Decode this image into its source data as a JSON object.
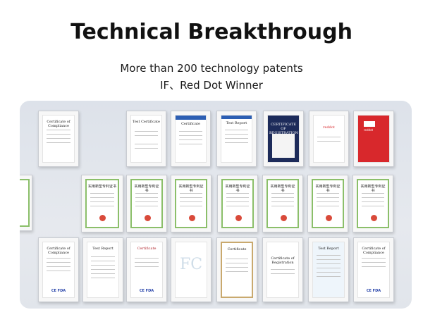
{
  "header": {
    "title": "Technical Breakthrough",
    "subtitle_line1": "More than 200 technology patents",
    "subtitle_line2": "IF、Red Dot Winner"
  },
  "certificates": {
    "row1": [
      {
        "title": "Certificate of Compliance"
      },
      {
        "title": "Test Certificate"
      },
      {
        "title": "Certificate"
      },
      {
        "title": "Test Report"
      },
      {
        "title": "CERTIFICATE OF REGISTRATION"
      },
      {
        "title": "reddot"
      },
      {
        "title": "reddot"
      }
    ],
    "row2_title": "实用新型专利证书",
    "row3": [
      {
        "title": "Certificate of Compliance"
      },
      {
        "title": "Test Report"
      },
      {
        "title": "Certificate"
      },
      {
        "title": "FC"
      },
      {
        "title": "Certificate"
      },
      {
        "title": "Certificate of Registration"
      },
      {
        "title": "Test Report"
      },
      {
        "title": "Certificate of Compliance"
      }
    ],
    "logos_text": "CE FDA"
  },
  "colors": {
    "wall": "#e1e5eb",
    "patent_green": "#8bbf6a",
    "reddot": "#d8282c",
    "navy": "#1d2b5a"
  }
}
